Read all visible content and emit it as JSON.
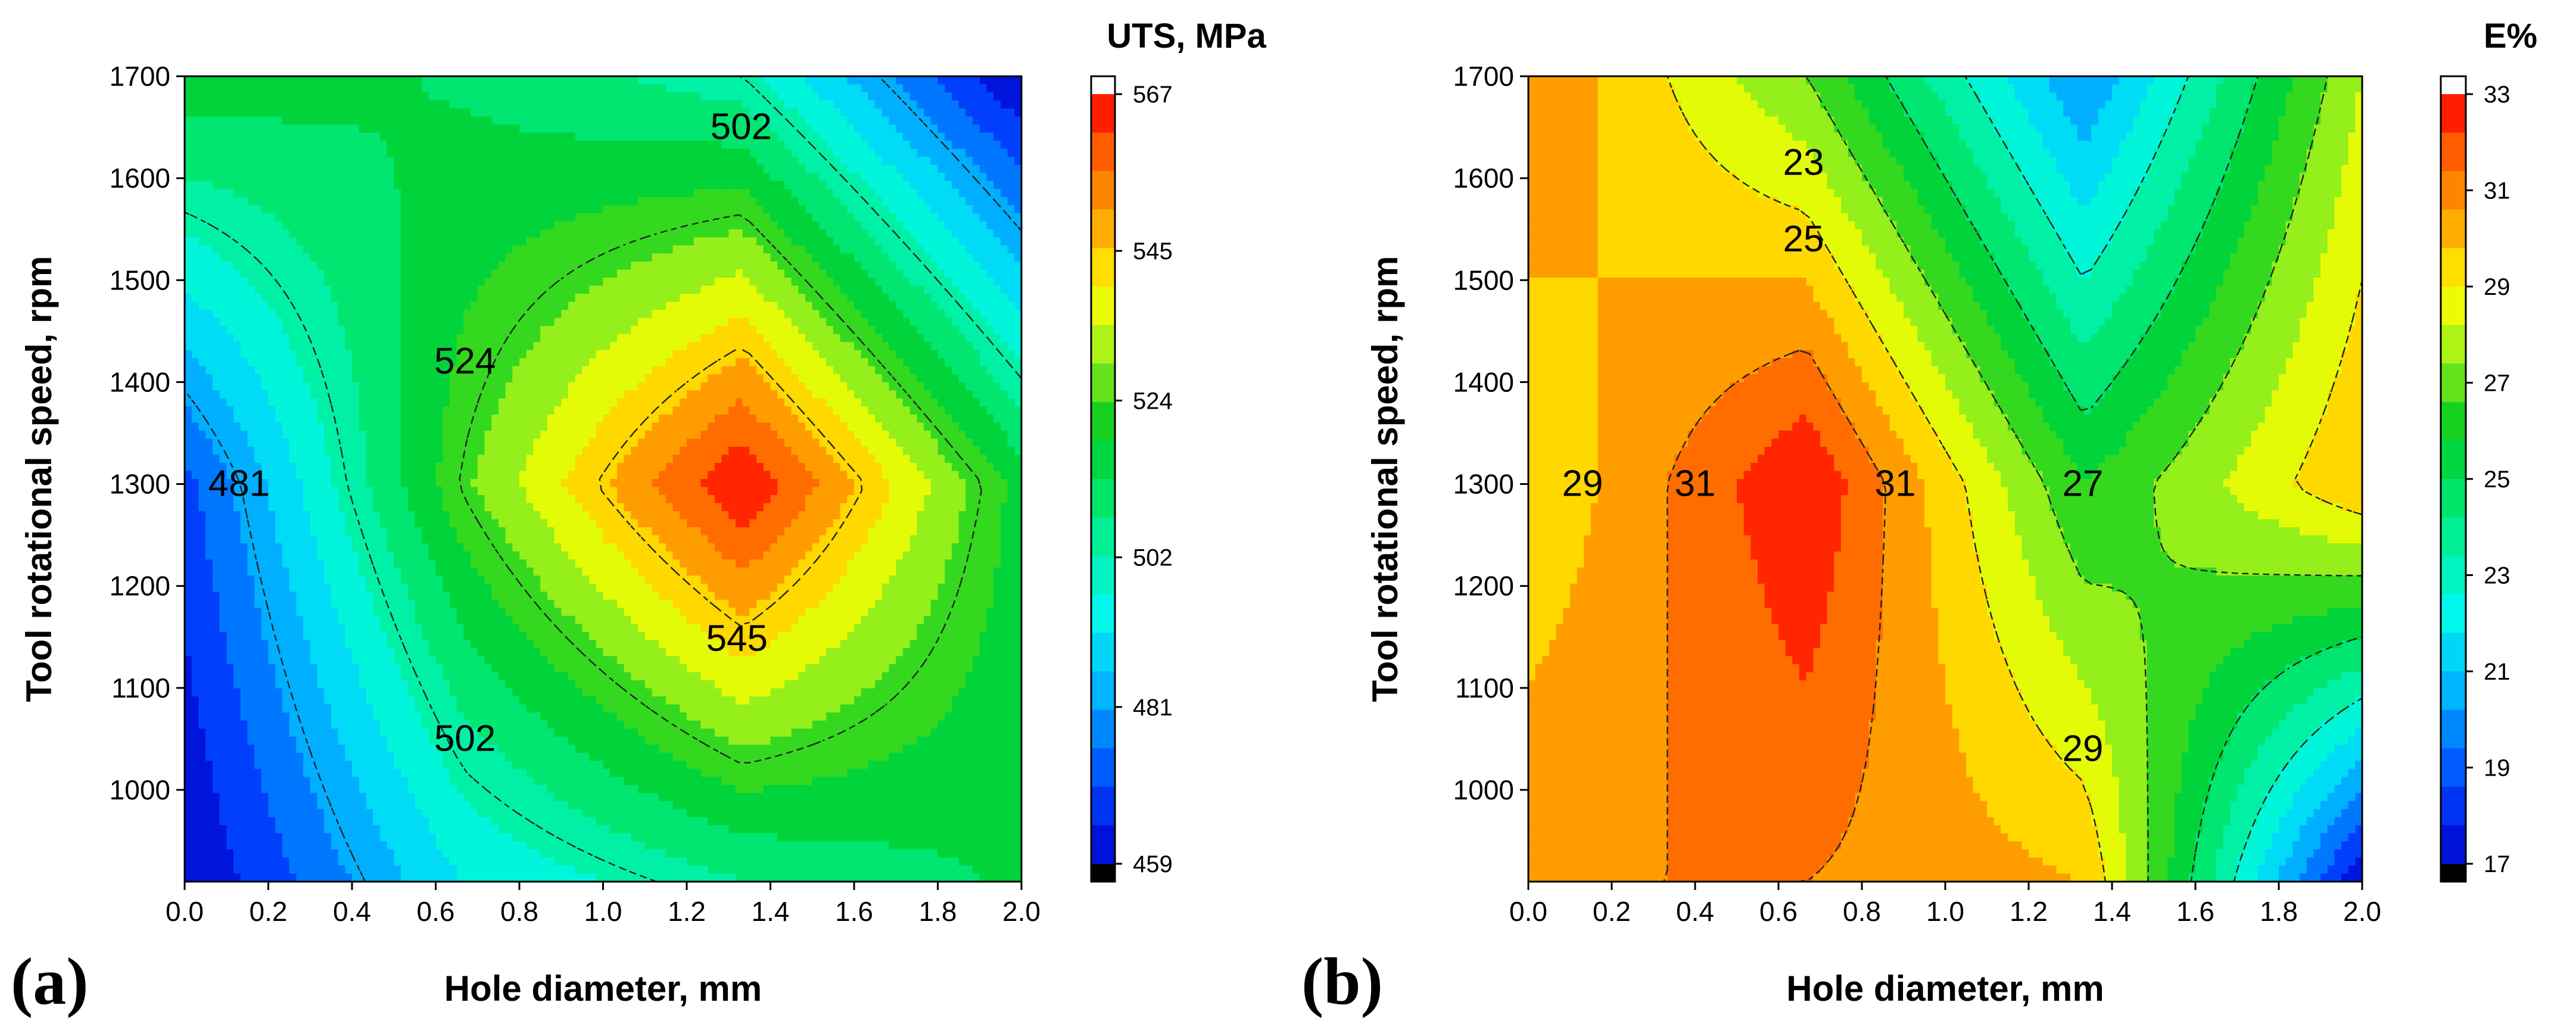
{
  "figure": {
    "panel_labels": [
      "(a)",
      "(b)"
    ]
  },
  "chart_data": [
    {
      "type": "heatmap",
      "panel": "(a)",
      "xlabel": "Hole diameter, mm",
      "ylabel": "Tool rotational speed, rpm",
      "colorbar_title": "UTS, MPa",
      "xlim": [
        0,
        2.0
      ],
      "ylim": [
        910,
        1700
      ],
      "xticks": [
        "0.0",
        "0.2",
        "0.4",
        "0.6",
        "0.8",
        "1.0",
        "1.2",
        "1.4",
        "1.6",
        "1.8",
        "2.0"
      ],
      "yticks": [
        "1000",
        "1100",
        "1200",
        "1300",
        "1400",
        "1500",
        "1600",
        "1700"
      ],
      "grid_x": [
        0,
        0.667,
        1.333,
        2.0
      ],
      "grid_y": [
        910,
        1300,
        1700
      ],
      "z": [
        [
          459,
          493,
          506,
          514
        ],
        [
          470,
          525,
          567,
          517
        ],
        [
          518,
          512,
          502,
          459
        ]
      ],
      "color_range": [
        459,
        567
      ],
      "colorbar_ticks": [
        "459",
        "481",
        "502",
        "524",
        "545",
        "567"
      ],
      "contour_levels": [
        481,
        502,
        524,
        545
      ],
      "contour_labels": [
        {
          "text": "481",
          "x": 0.13,
          "y": 1300
        },
        {
          "text": "502",
          "x": 1.33,
          "y": 1650
        },
        {
          "text": "524",
          "x": 0.67,
          "y": 1420
        },
        {
          "text": "545",
          "x": 1.32,
          "y": 1148
        },
        {
          "text": "502",
          "x": 0.67,
          "y": 1050
        }
      ],
      "colors": [
        "#000000",
        "#0000d8",
        "#0050ff",
        "#00b6ff",
        "#00ffee",
        "#00f08c",
        "#00cc33",
        "#7ef21b",
        "#ffff00",
        "#ffb200",
        "#ff6e00",
        "#ff1400",
        "#ffffff"
      ]
    },
    {
      "type": "heatmap",
      "panel": "(b)",
      "xlabel": "Hole diameter, mm",
      "ylabel": "Tool rotational speed, rpm",
      "colorbar_title": "E%",
      "xlim": [
        0,
        2.0
      ],
      "ylim": [
        910,
        1700
      ],
      "xticks": [
        "0.0",
        "0.2",
        "0.4",
        "0.6",
        "0.8",
        "1.0",
        "1.2",
        "1.4",
        "1.6",
        "1.8",
        "2.0"
      ],
      "yticks": [
        "1000",
        "1100",
        "1200",
        "1300",
        "1400",
        "1500",
        "1600",
        "1700"
      ],
      "grid_x": [
        0,
        0.667,
        1.333,
        2.0
      ],
      "grid_y": [
        910,
        1300,
        1700
      ],
      "z": [
        [
          31,
          31,
          30,
          17
        ],
        [
          29,
          33,
          26,
          30
        ],
        [
          31,
          27,
          20,
          28
        ]
      ],
      "color_range": [
        17,
        33
      ],
      "colorbar_ticks": [
        "17",
        "19",
        "21",
        "23",
        "25",
        "27",
        "29",
        "31",
        "33"
      ],
      "contour_levels": [
        23,
        25,
        27,
        29,
        31
      ],
      "contour_labels": [
        {
          "text": "23",
          "x": 0.66,
          "y": 1615
        },
        {
          "text": "25",
          "x": 0.66,
          "y": 1540
        },
        {
          "text": "29",
          "x": 0.13,
          "y": 1300
        },
        {
          "text": "31",
          "x": 0.4,
          "y": 1300
        },
        {
          "text": "31",
          "x": 0.88,
          "y": 1300
        },
        {
          "text": "27",
          "x": 1.33,
          "y": 1300
        },
        {
          "text": "29",
          "x": 1.33,
          "y": 1040
        }
      ],
      "colors": [
        "#000000",
        "#0000d8",
        "#0050ff",
        "#00b6ff",
        "#00ffee",
        "#00f08c",
        "#00cc33",
        "#7ef21b",
        "#ffff00",
        "#ffb200",
        "#ff6e00",
        "#ff1400",
        "#ffffff"
      ]
    }
  ]
}
